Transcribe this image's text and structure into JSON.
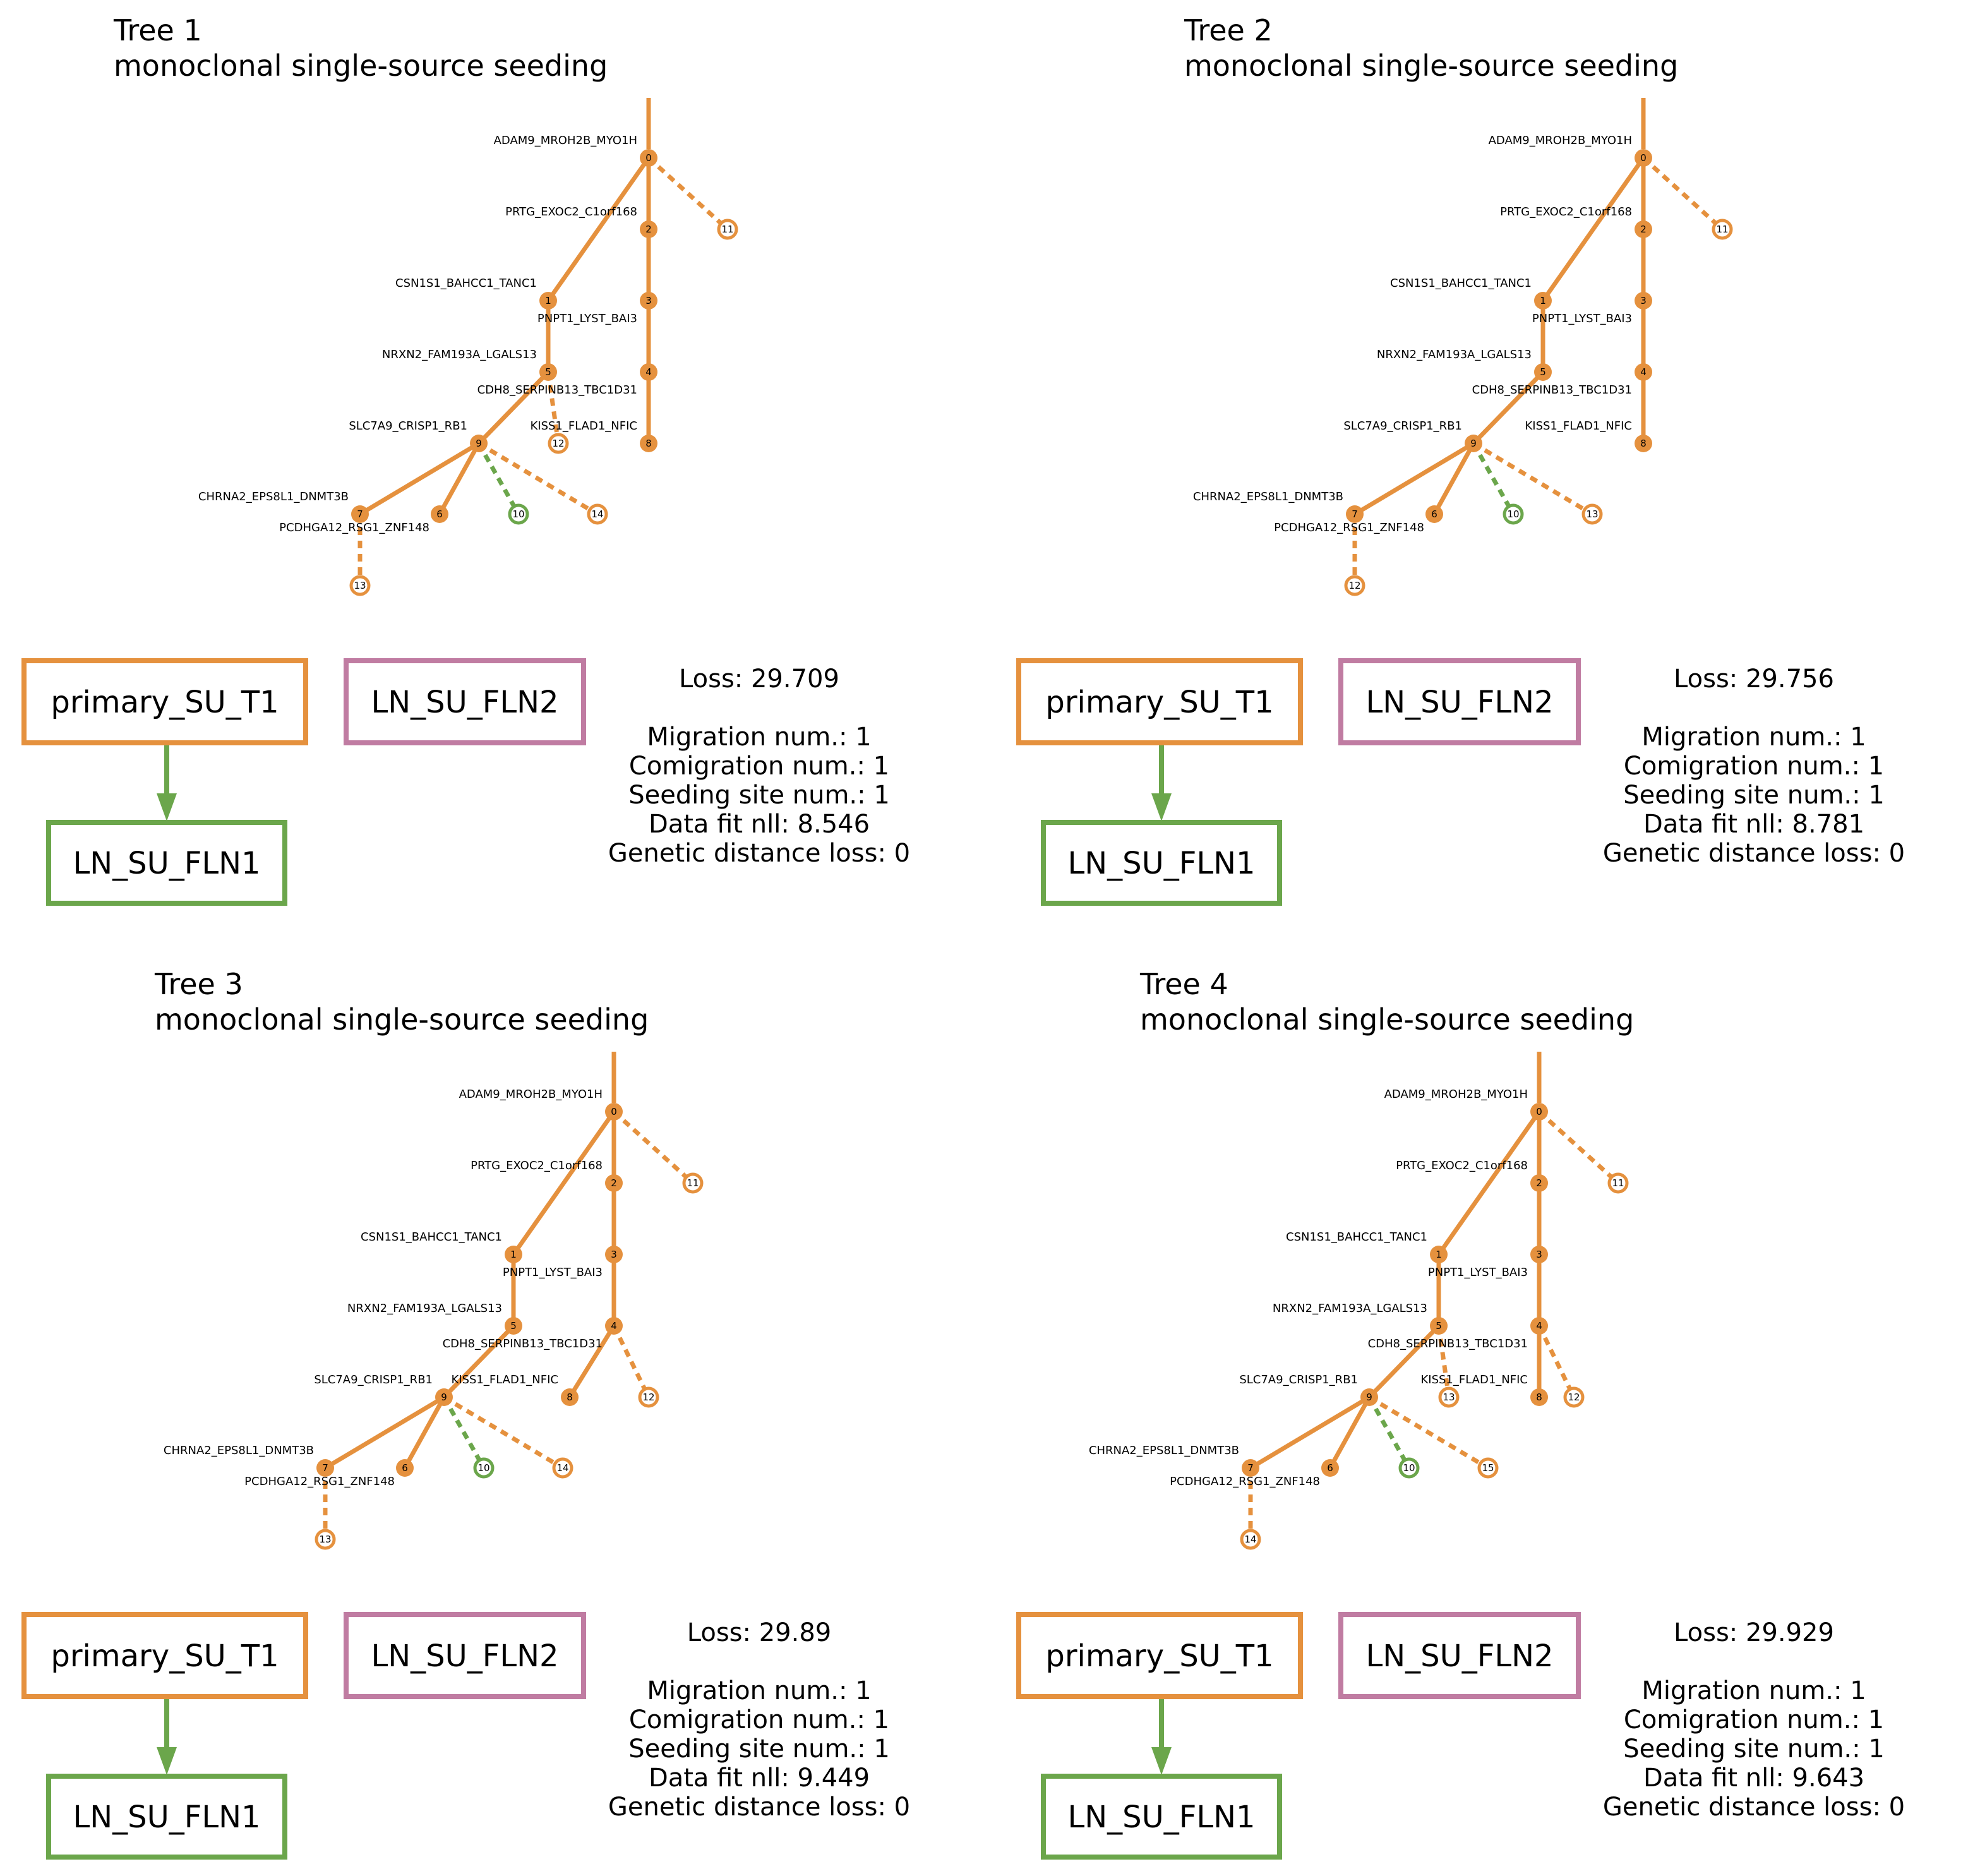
{
  "colors": {
    "primary": "#e5913e",
    "ln1": "#6ba64b",
    "ln2": "#c07ca2",
    "text": "#000000",
    "background": "#ffffff"
  },
  "sites": {
    "primary": "primary_SU_T1",
    "ln1": "LN_SU_FLN1",
    "ln2": "LN_SU_FLN2"
  },
  "stat_labels": {
    "loss": "Loss: ",
    "migration": "Migration num.: ",
    "comigration": "Comigration num.: ",
    "seeding": "Seeding site num.: ",
    "datafit": "Data fit nll: ",
    "genetic": "Genetic distance loss: "
  },
  "trees": [
    {
      "title": "Tree 1",
      "subtitle": "monoclonal single-source seeding",
      "stats": {
        "loss": "29.709",
        "migration": "1",
        "comigration": "1",
        "seeding": "1",
        "datafit": "8.546",
        "genetic": "0"
      },
      "nodes": [
        {
          "id": "0",
          "site": "primary",
          "type": "filled"
        },
        {
          "id": "2",
          "site": "primary",
          "type": "filled"
        },
        {
          "id": "11",
          "site": "primary",
          "type": "hollow"
        },
        {
          "id": "1",
          "site": "primary",
          "type": "filled"
        },
        {
          "id": "3",
          "site": "primary",
          "type": "filled"
        },
        {
          "id": "5",
          "site": "primary",
          "type": "filled"
        },
        {
          "id": "4",
          "site": "primary",
          "type": "filled"
        },
        {
          "id": "9",
          "site": "primary",
          "type": "filled"
        },
        {
          "id": "12",
          "site": "primary",
          "type": "hollow"
        },
        {
          "id": "8",
          "site": "primary",
          "type": "filled"
        },
        {
          "id": "7",
          "site": "primary",
          "type": "filled"
        },
        {
          "id": "6",
          "site": "primary",
          "type": "filled"
        },
        {
          "id": "10",
          "site": "ln1",
          "type": "hollow"
        },
        {
          "id": "14",
          "site": "primary",
          "type": "hollow"
        },
        {
          "id": "13",
          "site": "primary",
          "type": "hollow"
        }
      ],
      "edges": [
        {
          "from": "0",
          "to": "1",
          "style": "solid",
          "color": "primary"
        },
        {
          "from": "0",
          "to": "2",
          "style": "solid",
          "color": "primary"
        },
        {
          "from": "0",
          "to": "11",
          "style": "dashed",
          "color": "primary"
        },
        {
          "from": "2",
          "to": "3",
          "style": "solid",
          "color": "primary"
        },
        {
          "from": "3",
          "to": "4",
          "style": "solid",
          "color": "primary"
        },
        {
          "from": "4",
          "to": "8",
          "style": "solid",
          "color": "primary"
        },
        {
          "from": "1",
          "to": "5",
          "style": "solid",
          "color": "primary"
        },
        {
          "from": "5",
          "to": "9",
          "style": "solid",
          "color": "primary"
        },
        {
          "from": "5",
          "to": "12",
          "style": "dashed",
          "color": "primary"
        },
        {
          "from": "9",
          "to": "7",
          "style": "solid",
          "color": "primary"
        },
        {
          "from": "9",
          "to": "6",
          "style": "solid",
          "color": "primary"
        },
        {
          "from": "9",
          "to": "10",
          "style": "dashed",
          "color": "ln1"
        },
        {
          "from": "9",
          "to": "14",
          "style": "dashed",
          "color": "primary"
        },
        {
          "from": "7",
          "to": "13",
          "style": "dashed",
          "color": "primary"
        }
      ],
      "gene_labels": [
        {
          "node": "0",
          "text": "ADAM9_MROH2B_MYO1H"
        },
        {
          "node": "2",
          "text": "PRTG_EXOC2_C1orf168"
        },
        {
          "node": "1",
          "text": "CSN1S1_BAHCC1_TANC1"
        },
        {
          "node": "3",
          "text": "PNPT1_LYST_BAI3"
        },
        {
          "node": "5",
          "text": "NRXN2_FAM193A_LGALS13"
        },
        {
          "node": "4",
          "text": "CDH8_SERPINB13_TBC1D31"
        },
        {
          "node": "9",
          "text": "SLC7A9_CRISP1_RB1"
        },
        {
          "node": "8",
          "text": "KISS1_FLAD1_NFIC"
        },
        {
          "node": "7",
          "text": "CHRNA2_EPS8L1_DNMT3B"
        },
        {
          "node": "13",
          "text": "PCDHGA12_RSG1_ZNF148"
        }
      ]
    },
    {
      "title": "Tree 2",
      "subtitle": "monoclonal single-source seeding",
      "stats": {
        "loss": "29.756",
        "migration": "1",
        "comigration": "1",
        "seeding": "1",
        "datafit": "8.781",
        "genetic": "0"
      },
      "nodes": [
        {
          "id": "0",
          "site": "primary",
          "type": "filled"
        },
        {
          "id": "2",
          "site": "primary",
          "type": "filled"
        },
        {
          "id": "11",
          "site": "primary",
          "type": "hollow"
        },
        {
          "id": "1",
          "site": "primary",
          "type": "filled"
        },
        {
          "id": "3",
          "site": "primary",
          "type": "filled"
        },
        {
          "id": "5",
          "site": "primary",
          "type": "filled"
        },
        {
          "id": "4",
          "site": "primary",
          "type": "filled"
        },
        {
          "id": "9",
          "site": "primary",
          "type": "filled"
        },
        {
          "id": "8",
          "site": "primary",
          "type": "filled"
        },
        {
          "id": "7",
          "site": "primary",
          "type": "filled"
        },
        {
          "id": "6",
          "site": "primary",
          "type": "filled"
        },
        {
          "id": "10",
          "site": "ln1",
          "type": "hollow"
        },
        {
          "id": "13",
          "site": "primary",
          "type": "hollow"
        },
        {
          "id": "12",
          "site": "primary",
          "type": "hollow"
        }
      ],
      "edges": [
        {
          "from": "0",
          "to": "1",
          "style": "solid",
          "color": "primary"
        },
        {
          "from": "0",
          "to": "2",
          "style": "solid",
          "color": "primary"
        },
        {
          "from": "0",
          "to": "11",
          "style": "dashed",
          "color": "primary"
        },
        {
          "from": "2",
          "to": "3",
          "style": "solid",
          "color": "primary"
        },
        {
          "from": "3",
          "to": "4",
          "style": "solid",
          "color": "primary"
        },
        {
          "from": "4",
          "to": "8",
          "style": "solid",
          "color": "primary"
        },
        {
          "from": "1",
          "to": "5",
          "style": "solid",
          "color": "primary"
        },
        {
          "from": "5",
          "to": "9",
          "style": "solid",
          "color": "primary"
        },
        {
          "from": "9",
          "to": "7",
          "style": "solid",
          "color": "primary"
        },
        {
          "from": "9",
          "to": "6",
          "style": "solid",
          "color": "primary"
        },
        {
          "from": "9",
          "to": "10",
          "style": "dashed",
          "color": "ln1"
        },
        {
          "from": "9",
          "to": "13",
          "style": "dashed",
          "color": "primary"
        },
        {
          "from": "7",
          "to": "12",
          "style": "dashed",
          "color": "primary"
        }
      ],
      "gene_labels": [
        {
          "node": "0",
          "text": "ADAM9_MROH2B_MYO1H"
        },
        {
          "node": "2",
          "text": "PRTG_EXOC2_C1orf168"
        },
        {
          "node": "1",
          "text": "CSN1S1_BAHCC1_TANC1"
        },
        {
          "node": "3",
          "text": "PNPT1_LYST_BAI3"
        },
        {
          "node": "5",
          "text": "NRXN2_FAM193A_LGALS13"
        },
        {
          "node": "4",
          "text": "CDH8_SERPINB13_TBC1D31"
        },
        {
          "node": "9",
          "text": "SLC7A9_CRISP1_RB1"
        },
        {
          "node": "8",
          "text": "KISS1_FLAD1_NFIC"
        },
        {
          "node": "7",
          "text": "CHRNA2_EPS8L1_DNMT3B"
        },
        {
          "node": "12",
          "text": "PCDHGA12_RSG1_ZNF148"
        }
      ]
    },
    {
      "title": "Tree 3",
      "subtitle": "monoclonal single-source seeding",
      "stats": {
        "loss": "29.89",
        "migration": "1",
        "comigration": "1",
        "seeding": "1",
        "datafit": "9.449",
        "genetic": "0"
      },
      "nodes": [
        {
          "id": "0",
          "site": "primary",
          "type": "filled"
        },
        {
          "id": "2",
          "site": "primary",
          "type": "filled"
        },
        {
          "id": "11",
          "site": "primary",
          "type": "hollow"
        },
        {
          "id": "1",
          "site": "primary",
          "type": "filled"
        },
        {
          "id": "3",
          "site": "primary",
          "type": "filled"
        },
        {
          "id": "5",
          "site": "primary",
          "type": "filled"
        },
        {
          "id": "4",
          "site": "primary",
          "type": "filled"
        },
        {
          "id": "9",
          "site": "primary",
          "type": "filled"
        },
        {
          "id": "8",
          "site": "primary",
          "type": "filled"
        },
        {
          "id": "12",
          "site": "primary",
          "type": "hollow"
        },
        {
          "id": "7",
          "site": "primary",
          "type": "filled"
        },
        {
          "id": "6",
          "site": "primary",
          "type": "filled"
        },
        {
          "id": "10",
          "site": "ln1",
          "type": "hollow"
        },
        {
          "id": "14",
          "site": "primary",
          "type": "hollow"
        },
        {
          "id": "13",
          "site": "primary",
          "type": "hollow"
        }
      ],
      "edges": [
        {
          "from": "0",
          "to": "1",
          "style": "solid",
          "color": "primary"
        },
        {
          "from": "0",
          "to": "2",
          "style": "solid",
          "color": "primary"
        },
        {
          "from": "0",
          "to": "11",
          "style": "dashed",
          "color": "primary"
        },
        {
          "from": "2",
          "to": "3",
          "style": "solid",
          "color": "primary"
        },
        {
          "from": "3",
          "to": "4",
          "style": "solid",
          "color": "primary"
        },
        {
          "from": "4",
          "to": "8",
          "style": "solid",
          "color": "primary"
        },
        {
          "from": "4",
          "to": "12",
          "style": "dashed",
          "color": "primary"
        },
        {
          "from": "1",
          "to": "5",
          "style": "solid",
          "color": "primary"
        },
        {
          "from": "5",
          "to": "9",
          "style": "solid",
          "color": "primary"
        },
        {
          "from": "9",
          "to": "7",
          "style": "solid",
          "color": "primary"
        },
        {
          "from": "9",
          "to": "6",
          "style": "solid",
          "color": "primary"
        },
        {
          "from": "9",
          "to": "10",
          "style": "dashed",
          "color": "ln1"
        },
        {
          "from": "9",
          "to": "14",
          "style": "dashed",
          "color": "primary"
        },
        {
          "from": "7",
          "to": "13",
          "style": "dashed",
          "color": "primary"
        }
      ],
      "gene_labels": [
        {
          "node": "0",
          "text": "ADAM9_MROH2B_MYO1H"
        },
        {
          "node": "2",
          "text": "PRTG_EXOC2_C1orf168"
        },
        {
          "node": "1",
          "text": "CSN1S1_BAHCC1_TANC1"
        },
        {
          "node": "3",
          "text": "PNPT1_LYST_BAI3"
        },
        {
          "node": "5",
          "text": "NRXN2_FAM193A_LGALS13"
        },
        {
          "node": "4",
          "text": "CDH8_SERPINB13_TBC1D31"
        },
        {
          "node": "9",
          "text": "SLC7A9_CRISP1_RB1"
        },
        {
          "node": "8",
          "text": "KISS1_FLAD1_NFIC"
        },
        {
          "node": "7",
          "text": "CHRNA2_EPS8L1_DNMT3B"
        },
        {
          "node": "13",
          "text": "PCDHGA12_RSG1_ZNF148"
        }
      ]
    },
    {
      "title": "Tree 4",
      "subtitle": "monoclonal single-source seeding",
      "stats": {
        "loss": "29.929",
        "migration": "1",
        "comigration": "1",
        "seeding": "1",
        "datafit": "9.643",
        "genetic": "0"
      },
      "nodes": [
        {
          "id": "0",
          "site": "primary",
          "type": "filled"
        },
        {
          "id": "2",
          "site": "primary",
          "type": "filled"
        },
        {
          "id": "11",
          "site": "primary",
          "type": "hollow"
        },
        {
          "id": "1",
          "site": "primary",
          "type": "filled"
        },
        {
          "id": "3",
          "site": "primary",
          "type": "filled"
        },
        {
          "id": "5",
          "site": "primary",
          "type": "filled"
        },
        {
          "id": "4",
          "site": "primary",
          "type": "filled"
        },
        {
          "id": "9",
          "site": "primary",
          "type": "filled"
        },
        {
          "id": "13",
          "site": "primary",
          "type": "hollow"
        },
        {
          "id": "8",
          "site": "primary",
          "type": "filled"
        },
        {
          "id": "12",
          "site": "primary",
          "type": "hollow"
        },
        {
          "id": "7",
          "site": "primary",
          "type": "filled"
        },
        {
          "id": "6",
          "site": "primary",
          "type": "filled"
        },
        {
          "id": "10",
          "site": "ln1",
          "type": "hollow"
        },
        {
          "id": "15",
          "site": "primary",
          "type": "hollow"
        },
        {
          "id": "14",
          "site": "primary",
          "type": "hollow"
        }
      ],
      "edges": [
        {
          "from": "0",
          "to": "1",
          "style": "solid",
          "color": "primary"
        },
        {
          "from": "0",
          "to": "2",
          "style": "solid",
          "color": "primary"
        },
        {
          "from": "0",
          "to": "11",
          "style": "dashed",
          "color": "primary"
        },
        {
          "from": "2",
          "to": "3",
          "style": "solid",
          "color": "primary"
        },
        {
          "from": "3",
          "to": "4",
          "style": "solid",
          "color": "primary"
        },
        {
          "from": "4",
          "to": "8",
          "style": "solid",
          "color": "primary"
        },
        {
          "from": "4",
          "to": "12",
          "style": "dashed",
          "color": "primary"
        },
        {
          "from": "1",
          "to": "5",
          "style": "solid",
          "color": "primary"
        },
        {
          "from": "5",
          "to": "9",
          "style": "solid",
          "color": "primary"
        },
        {
          "from": "5",
          "to": "13",
          "style": "dashed",
          "color": "primary"
        },
        {
          "from": "9",
          "to": "7",
          "style": "solid",
          "color": "primary"
        },
        {
          "from": "9",
          "to": "6",
          "style": "solid",
          "color": "primary"
        },
        {
          "from": "9",
          "to": "10",
          "style": "dashed",
          "color": "ln1"
        },
        {
          "from": "9",
          "to": "15",
          "style": "dashed",
          "color": "primary"
        },
        {
          "from": "7",
          "to": "14",
          "style": "dashed",
          "color": "primary"
        }
      ],
      "gene_labels": [
        {
          "node": "0",
          "text": "ADAM9_MROH2B_MYO1H"
        },
        {
          "node": "2",
          "text": "PRTG_EXOC2_C1orf168"
        },
        {
          "node": "1",
          "text": "CSN1S1_BAHCC1_TANC1"
        },
        {
          "node": "3",
          "text": "PNPT1_LYST_BAI3"
        },
        {
          "node": "5",
          "text": "NRXN2_FAM193A_LGALS13"
        },
        {
          "node": "4",
          "text": "CDH8_SERPINB13_TBC1D31"
        },
        {
          "node": "9",
          "text": "SLC7A9_CRISP1_RB1"
        },
        {
          "node": "8",
          "text": "KISS1_FLAD1_NFIC"
        },
        {
          "node": "7",
          "text": "CHRNA2_EPS8L1_DNMT3B"
        },
        {
          "node": "14",
          "text": "PCDHGA12_RSG1_ZNF148"
        }
      ]
    }
  ]
}
